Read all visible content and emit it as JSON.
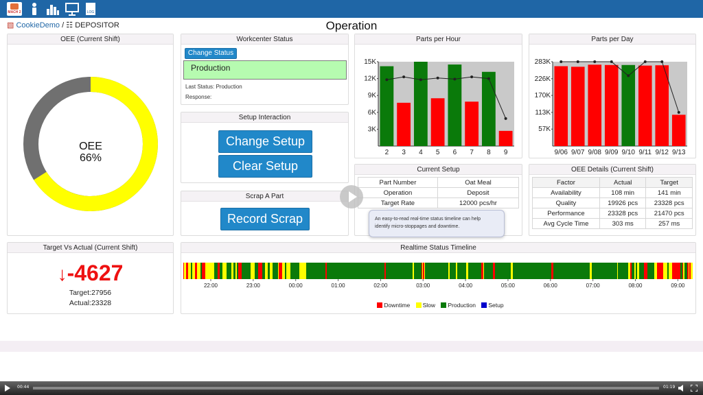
{
  "nav": {
    "logo_text": "MACH 2",
    "icons": [
      "mach2-logo-icon",
      "operator-icon",
      "bar-chart-icon",
      "monitor-icon",
      "log-document-icon"
    ],
    "log_label": "LOG"
  },
  "breadcrumb": {
    "parent": "CookieDemo",
    "separator": "/",
    "current": "DEPOSITOR"
  },
  "page_title": "Operation",
  "oee_panel": {
    "title": "OEE (Current Shift)",
    "label": "OEE",
    "value_text": "66%",
    "value": 66,
    "colors": {
      "filled": "#ffff00",
      "remaining": "#707070"
    }
  },
  "workcenter": {
    "title": "Workcenter Status",
    "change_status_label": "Change Status",
    "current_status": "Production",
    "last_status": "Last Status: Production",
    "response": "Response:"
  },
  "setup": {
    "title": "Setup Interaction",
    "change_label": "Change Setup",
    "clear_label": "Clear Setup"
  },
  "scrap": {
    "title": "Scrap A Part",
    "button_label": "Record Scrap"
  },
  "target_actual": {
    "title": "Target Vs Actual (Current Shift)",
    "delta": "-4627",
    "target": "Target:27956",
    "actual": "Actual:23328"
  },
  "current_setup": {
    "title": "Current Setup",
    "rows": [
      [
        "Part Number",
        "Oat Meal"
      ],
      [
        "Operation",
        "Deposit"
      ],
      [
        "Target Rate",
        "12000 pcs/hr"
      ]
    ]
  },
  "oee_details": {
    "title": "OEE Details (Current Shift)",
    "headers": [
      "Factor",
      "Actual",
      "Target"
    ],
    "rows": [
      [
        "Availability",
        "108 min",
        "141 min"
      ],
      [
        "Quality",
        "19926 pcs",
        "23328 pcs"
      ],
      [
        "Performance",
        "23328 pcs",
        "21470 pcs"
      ],
      [
        "Avg Cycle Time",
        "303 ms",
        "257 ms"
      ]
    ]
  },
  "tooltip": {
    "line1": "An easy-to-read real-time status timeline can help",
    "line2": "identify micro-stoppages and downtime."
  },
  "timeline": {
    "title": "Realtime Status Timeline",
    "ticks": [
      "22:00",
      "23:00",
      "00:00",
      "01:00",
      "02:00",
      "03:00",
      "04:00",
      "05:00",
      "06:00",
      "07:00",
      "08:00",
      "09:00"
    ],
    "legend": [
      {
        "label": "Downtime",
        "color": "#ff0000"
      },
      {
        "label": "Slow",
        "color": "#ffff00"
      },
      {
        "label": "Production",
        "color": "#0a7a0a"
      },
      {
        "label": "Setup",
        "color": "#0000cc"
      }
    ]
  },
  "video": {
    "elapsed": "00:44",
    "remaining": "01:19"
  },
  "chart_data": [
    {
      "type": "bar",
      "title": "Parts per Hour",
      "categories": [
        "2",
        "3",
        "4",
        "5",
        "6",
        "7",
        "8",
        "9"
      ],
      "ylim": [
        0,
        15000
      ],
      "yticks": [
        "15K",
        "12K",
        "9K",
        "6K",
        "3K"
      ],
      "ytick_values": [
        15000,
        12000,
        9000,
        6000,
        3000
      ],
      "series": [
        {
          "values": [
            14200,
            7700,
            15000,
            8500,
            14500,
            7900,
            13200,
            2700
          ],
          "colors": [
            "#0a7a0a",
            "#ff0000",
            "#0a7a0a",
            "#ff0000",
            "#0a7a0a",
            "#ff0000",
            "#0a7a0a",
            "#ff0000"
          ]
        },
        {
          "type": "line",
          "values": [
            11800,
            12300,
            11800,
            12100,
            11900,
            12300,
            12000,
            4900
          ]
        }
      ],
      "target_band": 15000
    },
    {
      "type": "bar",
      "title": "Parts per Day",
      "categories": [
        "9/06",
        "9/07",
        "9/08",
        "9/09",
        "9/10",
        "9/11",
        "9/12",
        "9/13"
      ],
      "ylim": [
        0,
        283000
      ],
      "yticks": [
        "283K",
        "226K",
        "170K",
        "113K",
        "57K"
      ],
      "ytick_values": [
        283000,
        226000,
        170000,
        113000,
        57000
      ],
      "series": [
        {
          "values": [
            268000,
            266000,
            273000,
            272000,
            272000,
            270000,
            271000,
            105000
          ],
          "colors": [
            "#ff0000",
            "#ff0000",
            "#ff0000",
            "#ff0000",
            "#0a7a0a",
            "#ff0000",
            "#ff0000",
            "#ff0000"
          ]
        },
        {
          "type": "line",
          "values": [
            283000,
            283000,
            283000,
            283000,
            236000,
            283000,
            283000,
            113000
          ]
        }
      ],
      "target_band": 283000
    }
  ]
}
